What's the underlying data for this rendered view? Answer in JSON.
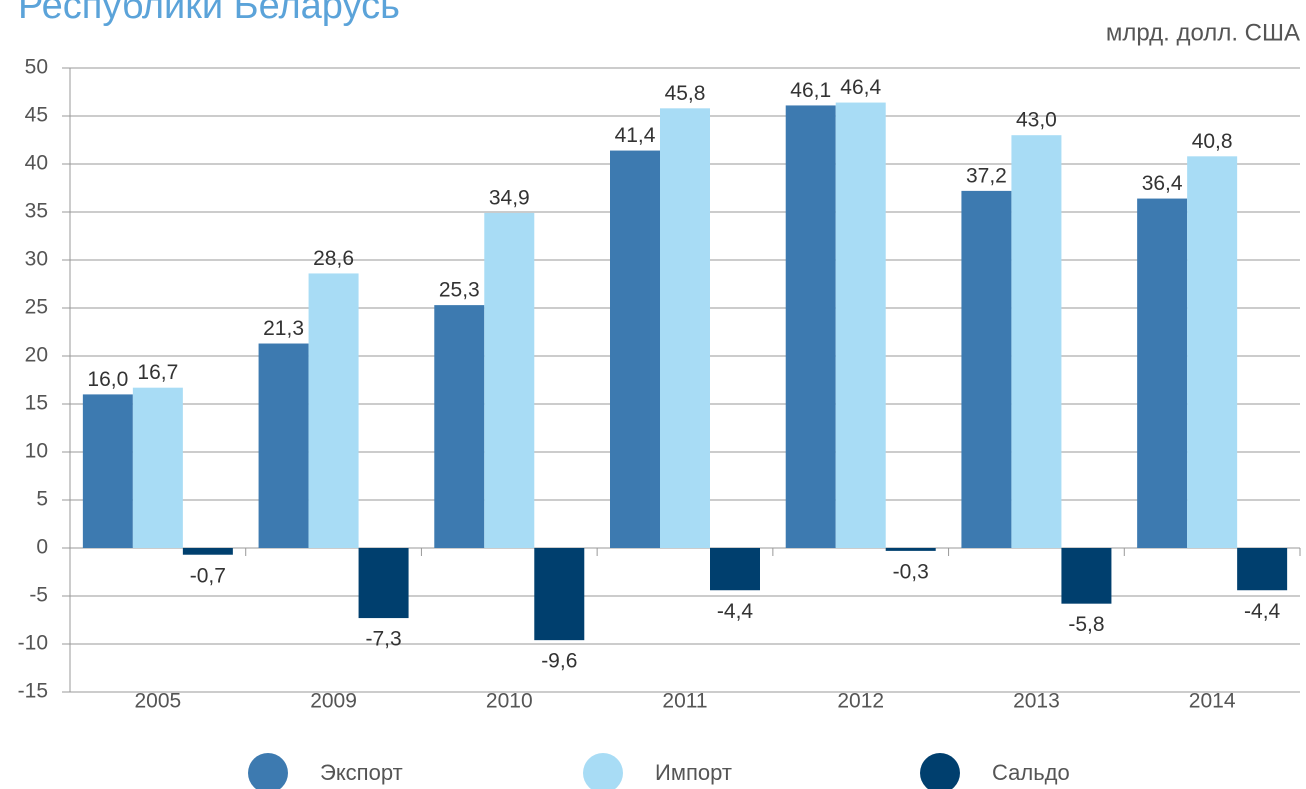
{
  "chart_data": {
    "type": "bar",
    "title": "Республики Беларусь",
    "unit_label": "млрд. долл. США",
    "categories": [
      "2005",
      "2009",
      "2010",
      "2011",
      "2012",
      "2013",
      "2014"
    ],
    "series": [
      {
        "name": "Экспорт",
        "color": "#3d7ab0",
        "values": [
          16.0,
          21.3,
          25.3,
          41.4,
          46.1,
          37.2,
          36.4
        ],
        "value_labels": [
          "16,0",
          "21,3",
          "25,3",
          "41,4",
          "46,1",
          "37,2",
          "36,4"
        ]
      },
      {
        "name": "Импорт",
        "color": "#a8dcf5",
        "values": [
          16.7,
          28.6,
          34.9,
          45.8,
          46.4,
          43.0,
          40.8
        ],
        "value_labels": [
          "16,7",
          "28,6",
          "34,9",
          "45,8",
          "46,4",
          "43,0",
          "40,8"
        ]
      },
      {
        "name": "Сальдо",
        "color": "#003f6e",
        "values": [
          -0.7,
          -7.3,
          -9.6,
          -4.4,
          -0.3,
          -5.8,
          -4.4
        ],
        "value_labels": [
          "-0,7",
          "-7,3",
          "-9,6",
          "-4,4",
          "-0,3",
          "-5,8",
          "-4,4"
        ]
      }
    ],
    "ylim": [
      -15,
      50
    ],
    "yticks": [
      -15,
      -10,
      -5,
      0,
      5,
      10,
      15,
      20,
      25,
      30,
      35,
      40,
      45,
      50
    ],
    "grid": true
  }
}
